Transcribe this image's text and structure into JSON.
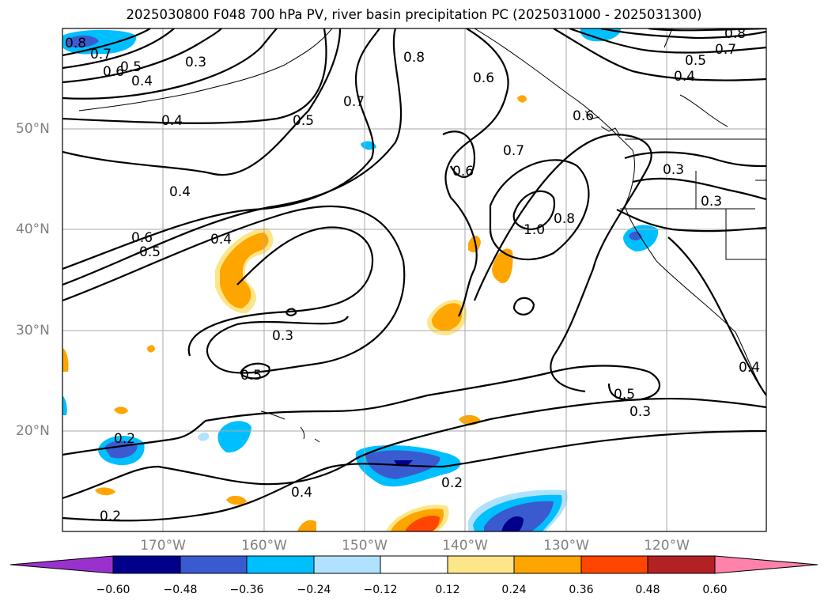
{
  "title": "2025030800 F048 700 hPa PV, river basin precipitation PC (2025031000 - 2025031300)",
  "map": {
    "lon_ticks": [
      "170°W",
      "160°W",
      "150°W",
      "140°W",
      "130°W",
      "120°W"
    ],
    "lat_ticks": [
      "50°N",
      "40°N",
      "30°N",
      "20°N"
    ],
    "contour_labels": [
      "0.8",
      "0.7",
      "0.6",
      "0.5",
      "0.4",
      "0.3",
      "0.4",
      "0.5",
      "0.7",
      "0.8",
      "0.6",
      "0.6",
      "0.7",
      "0.6",
      "0.8",
      "0.7",
      "0.5",
      "0.4",
      "0.3",
      "0.3",
      "0.4",
      "0.6",
      "0.5",
      "0.4",
      "1.0",
      "0.8",
      "0.3",
      "0.5",
      "0.5",
      "0.3",
      "0.4",
      "0.2",
      "0.2",
      "0.4",
      "0.2"
    ]
  },
  "colorbar": {
    "labels": [
      "−0.60",
      "−0.48",
      "−0.36",
      "−0.24",
      "−0.12",
      "0.12",
      "0.24",
      "0.36",
      "0.48",
      "0.60"
    ],
    "colors": [
      "#9932cc",
      "#00008b",
      "#3a5bd0",
      "#00bfff",
      "#b0e2ff",
      "#ffffff",
      "#fde68a",
      "#ffa500",
      "#ff4500",
      "#b22222",
      "#ff82ab"
    ]
  },
  "styling": {
    "grid_color": "#aaaaaa",
    "contour_color": "#000000",
    "tick_color": "#808080"
  }
}
